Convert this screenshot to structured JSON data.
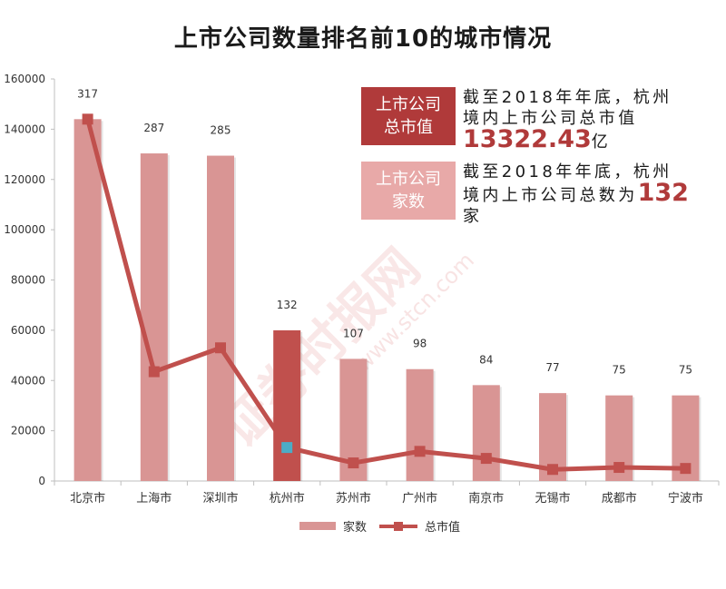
{
  "chart_data": {
    "type": "bar",
    "title": "上市公司数量排名前10的城市情况",
    "categories": [
      "北京市",
      "上海市",
      "深圳市",
      "杭州市",
      "苏州市",
      "广州市",
      "南京市",
      "无锡市",
      "成都市",
      "宁波市"
    ],
    "series": [
      {
        "name": "家数",
        "type": "bar",
        "values": [
          317,
          287,
          285,
          132,
          107,
          98,
          84,
          77,
          75,
          75
        ],
        "data_labels": [
          "317",
          "287",
          "285",
          "132",
          "107",
          "98",
          "84",
          "77",
          "75",
          "75"
        ],
        "color": "#d99594",
        "highlight_color": "#c0504d",
        "highlight_index": 3
      },
      {
        "name": "总市值",
        "type": "line",
        "values": [
          144000,
          43500,
          53000,
          13322,
          7200,
          11800,
          9000,
          4600,
          5400,
          5000
        ],
        "color": "#c0504d",
        "highlight_marker_color": "#4bacc6",
        "highlight_index": 3
      }
    ],
    "yaxis": {
      "min": 0,
      "max": 160000,
      "step": 20000,
      "tick_labels": [
        "0",
        "20000",
        "40000",
        "60000",
        "80000",
        "100000",
        "120000",
        "140000",
        "160000"
      ]
    },
    "grid": false,
    "legend_position": "bottom"
  },
  "callouts": [
    {
      "label_line1": "上市公司",
      "label_line2": "总市值",
      "text": "截至2018年年底，杭州境内上市公司总市值",
      "value": "13322.43",
      "unit": "亿",
      "box_color": "#b03a3a"
    },
    {
      "label_line1": "上市公司",
      "label_line2": "家数",
      "text": "截至2018年年底，杭州境内上市公司总数为",
      "value": "132",
      "unit": "家",
      "box_color": "#e8a9a8"
    }
  ],
  "watermark": {
    "text": "证券时报网",
    "url": "www.stcn.com"
  }
}
